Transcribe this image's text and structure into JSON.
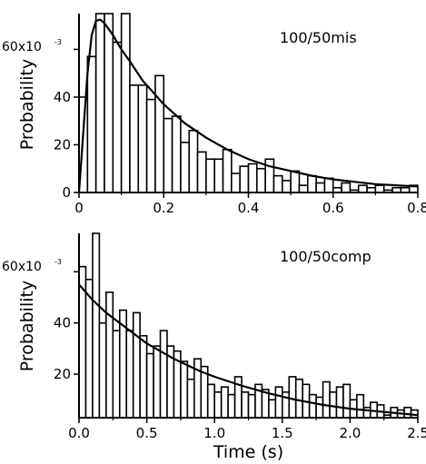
{
  "chart_data": [
    {
      "type": "bar",
      "annotation": "100/50mis",
      "ylabel": "Probability",
      "xlabel": "",
      "y_tick_label": "60x10",
      "y_tick_exponent": "-3",
      "bin_width": 0.02,
      "xlim": [
        0,
        0.8
      ],
      "ylim": [
        0,
        0.075
      ],
      "x_ticks": [
        0,
        0.2,
        0.4,
        0.6,
        0.8
      ],
      "x_tick_labels": [
        "0",
        "0.2",
        "0.4",
        "0.6",
        "0.8"
      ],
      "y_ticks": [
        0,
        0.02,
        0.04,
        0.06
      ],
      "y_tick_labels": [
        "0",
        "20",
        "40",
        ""
      ],
      "series": [
        {
          "kind": "histogram",
          "x_start": [
            0.0,
            0.02,
            0.04,
            0.06,
            0.08,
            0.1,
            0.12,
            0.14,
            0.16,
            0.18,
            0.2,
            0.22,
            0.24,
            0.26,
            0.28,
            0.3,
            0.32,
            0.34,
            0.36,
            0.38,
            0.4,
            0.42,
            0.44,
            0.46,
            0.48,
            0.5,
            0.52,
            0.54,
            0.56,
            0.58,
            0.6,
            0.62,
            0.64,
            0.66,
            0.68,
            0.7,
            0.72,
            0.74,
            0.76,
            0.78
          ],
          "values": [
            0.04,
            0.057,
            0.075,
            0.075,
            0.063,
            0.075,
            0.045,
            0.045,
            0.039,
            0.049,
            0.031,
            0.032,
            0.021,
            0.026,
            0.017,
            0.014,
            0.014,
            0.018,
            0.008,
            0.011,
            0.012,
            0.01,
            0.014,
            0.007,
            0.005,
            0.009,
            0.003,
            0.007,
            0.004,
            0.006,
            0.002,
            0.004,
            0.001,
            0.003,
            0.002,
            0.003,
            0.001,
            0.002,
            0.002,
            0.003
          ]
        },
        {
          "kind": "fit",
          "x": [
            0.0,
            0.01,
            0.02,
            0.03,
            0.04,
            0.05,
            0.06,
            0.08,
            0.1,
            0.12,
            0.15,
            0.2,
            0.25,
            0.3,
            0.35,
            0.4,
            0.45,
            0.5,
            0.55,
            0.6,
            0.65,
            0.7,
            0.75,
            0.8
          ],
          "y": [
            0.0,
            0.025,
            0.05,
            0.066,
            0.072,
            0.0725,
            0.071,
            0.066,
            0.06,
            0.055,
            0.047,
            0.037,
            0.029,
            0.023,
            0.018,
            0.014,
            0.011,
            0.009,
            0.007,
            0.0055,
            0.0045,
            0.0035,
            0.003,
            0.0025
          ]
        }
      ]
    },
    {
      "type": "bar",
      "annotation": "100/50comp",
      "ylabel": "Probability",
      "xlabel": "Time (s)",
      "y_tick_label": "60x10",
      "y_tick_exponent": "-3",
      "bin_width": 0.05,
      "xlim": [
        0,
        2.5
      ],
      "ylim": [
        0.003,
        0.075
      ],
      "x_ticks": [
        0,
        0.5,
        1.0,
        1.5,
        2.0,
        2.5
      ],
      "x_tick_labels": [
        "0.0",
        "0.5",
        "1.0",
        "1.5",
        "2.0",
        "2.5"
      ],
      "y_ticks": [
        0.02,
        0.04,
        0.06
      ],
      "y_tick_labels": [
        "20",
        "40",
        ""
      ],
      "series": [
        {
          "kind": "histogram",
          "x_start": [
            0.0,
            0.05,
            0.1,
            0.15,
            0.2,
            0.25,
            0.3,
            0.35,
            0.4,
            0.45,
            0.5,
            0.55,
            0.6,
            0.65,
            0.7,
            0.75,
            0.8,
            0.85,
            0.9,
            0.95,
            1.0,
            1.05,
            1.1,
            1.15,
            1.2,
            1.25,
            1.3,
            1.35,
            1.4,
            1.45,
            1.5,
            1.55,
            1.6,
            1.65,
            1.7,
            1.75,
            1.8,
            1.85,
            1.9,
            1.95,
            2.0,
            2.05,
            2.1,
            2.15,
            2.2,
            2.25,
            2.3,
            2.35,
            2.4,
            2.45
          ],
          "values": [
            0.062,
            0.057,
            0.075,
            0.04,
            0.052,
            0.037,
            0.045,
            0.037,
            0.044,
            0.035,
            0.028,
            0.031,
            0.037,
            0.031,
            0.029,
            0.025,
            0.018,
            0.026,
            0.023,
            0.016,
            0.013,
            0.015,
            0.012,
            0.019,
            0.013,
            0.012,
            0.016,
            0.014,
            0.01,
            0.015,
            0.013,
            0.019,
            0.018,
            0.016,
            0.012,
            0.011,
            0.017,
            0.013,
            0.015,
            0.016,
            0.01,
            0.012,
            0.007,
            0.009,
            0.008,
            0.004,
            0.007,
            0.006,
            0.007,
            0.006
          ]
        },
        {
          "kind": "fit",
          "x": [
            0.0,
            0.1,
            0.2,
            0.3,
            0.4,
            0.5,
            0.6,
            0.7,
            0.8,
            0.9,
            1.0,
            1.2,
            1.4,
            1.6,
            1.8,
            2.0,
            2.2,
            2.4,
            2.5
          ],
          "y": [
            0.055,
            0.049,
            0.044,
            0.04,
            0.036,
            0.032,
            0.029,
            0.026,
            0.0235,
            0.021,
            0.019,
            0.0155,
            0.0125,
            0.01,
            0.008,
            0.0065,
            0.0055,
            0.0045,
            0.004
          ]
        }
      ]
    }
  ]
}
